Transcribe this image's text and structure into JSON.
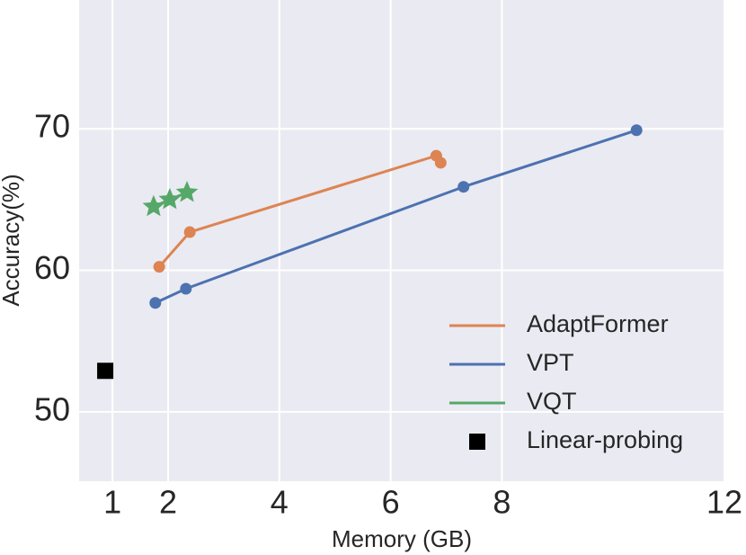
{
  "chart_data": {
    "type": "scatter",
    "xlabel": "Memory (GB)",
    "ylabel": "Accuracy(%)",
    "xlim": [
      0.4,
      12
    ],
    "ylim": [
      45.1,
      79.1
    ],
    "xticks": [
      1,
      2,
      4,
      6,
      8,
      12
    ],
    "yticks": [
      50,
      60,
      70
    ],
    "grid": true,
    "background": "#eaeaf2",
    "legend": "lower right",
    "series": [
      {
        "name": "AdaptFormer",
        "color": "#dd8452",
        "marker": "circle",
        "line": true,
        "x": [
          1.84,
          2.39,
          6.82,
          6.9
        ],
        "values": [
          60.25,
          62.7,
          68.1,
          67.6
        ]
      },
      {
        "name": "VPT",
        "color": "#4c72b0",
        "marker": "circle",
        "line": true,
        "x": [
          1.77,
          2.32,
          7.31,
          10.42
        ],
        "values": [
          57.7,
          58.7,
          65.9,
          69.9
        ]
      },
      {
        "name": "VQT",
        "color": "#55a868",
        "marker": "star",
        "line": true,
        "x": [
          1.74,
          2.03,
          2.34
        ],
        "values": [
          64.5,
          65.0,
          65.5
        ]
      },
      {
        "name": "Linear-probing",
        "color": "#000000",
        "marker": "square",
        "line": false,
        "x": [
          0.87
        ],
        "values": [
          52.9
        ]
      }
    ]
  }
}
